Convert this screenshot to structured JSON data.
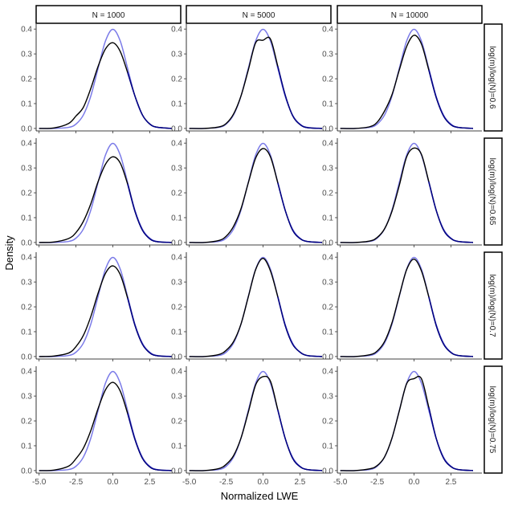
{
  "chart_data": {
    "type": "line",
    "layout": "facet-grid 4 rows x 3 columns",
    "xlabel": "Normalized LWE",
    "ylabel": "Density",
    "xlim": [
      -5.2,
      4.6
    ],
    "ylim": [
      -0.01,
      0.42
    ],
    "x_ticks": [
      -5.0,
      -2.5,
      0.0,
      2.5
    ],
    "x_tick_labels": [
      "-5.0",
      "-2.5",
      "0.0",
      "2.5"
    ],
    "y_ticks": [
      0.0,
      0.1,
      0.2,
      0.3,
      0.4
    ],
    "y_tick_labels": [
      "0.0",
      "0.1",
      "0.2",
      "0.3",
      "0.4"
    ],
    "grid": false,
    "legend": "none",
    "colors": {
      "empirical": "#000000",
      "normal_reference": "#7b7be8",
      "overlap": "#00008b"
    },
    "columns": [
      "N = 1000",
      "N = 5000",
      "N = 10000"
    ],
    "rows": [
      "log(m)/log(N)=0.6",
      "log(m)/log(N)=0.65",
      "log(m)/log(N)=0.7",
      "log(m)/log(N)=0.75"
    ],
    "reference_curve": {
      "x": [
        -5.0,
        -4.0,
        -3.0,
        -2.5,
        -2.0,
        -1.5,
        -1.0,
        -0.5,
        0.0,
        0.5,
        1.0,
        1.5,
        2.0,
        2.5,
        3.0,
        4.0
      ],
      "y": [
        0.0,
        0.0001,
        0.0044,
        0.0175,
        0.054,
        0.1295,
        0.242,
        0.352,
        0.399,
        0.352,
        0.242,
        0.1295,
        0.054,
        0.0175,
        0.0044,
        0.0001
      ]
    },
    "x": [
      -5.0,
      -4.0,
      -3.0,
      -2.5,
      -2.0,
      -1.5,
      -1.0,
      -0.5,
      0.0,
      0.5,
      1.0,
      1.5,
      2.0,
      2.5,
      3.0,
      4.0
    ],
    "panels": [
      {
        "row": 0,
        "col": 0,
        "values": [
          0.0,
          0.002,
          0.02,
          0.05,
          0.085,
          0.16,
          0.25,
          0.32,
          0.345,
          0.31,
          0.225,
          0.13,
          0.055,
          0.018,
          0.005,
          0.0
        ]
      },
      {
        "row": 0,
        "col": 1,
        "values": [
          0.0,
          0.0,
          0.006,
          0.02,
          0.058,
          0.13,
          0.235,
          0.345,
          0.355,
          0.36,
          0.25,
          0.135,
          0.052,
          0.016,
          0.003,
          0.0
        ]
      },
      {
        "row": 0,
        "col": 2,
        "values": [
          0.0,
          0.0,
          0.007,
          0.025,
          0.07,
          0.135,
          0.235,
          0.33,
          0.375,
          0.34,
          0.235,
          0.125,
          0.05,
          0.015,
          0.004,
          0.0
        ]
      },
      {
        "row": 1,
        "col": 0,
        "values": [
          0.0,
          0.002,
          0.016,
          0.04,
          0.085,
          0.155,
          0.245,
          0.315,
          0.345,
          0.32,
          0.235,
          0.125,
          0.05,
          0.015,
          0.003,
          0.0
        ]
      },
      {
        "row": 1,
        "col": 1,
        "values": [
          0.0,
          0.0,
          0.008,
          0.025,
          0.065,
          0.135,
          0.24,
          0.34,
          0.378,
          0.345,
          0.24,
          0.13,
          0.05,
          0.016,
          0.004,
          0.0
        ]
      },
      {
        "row": 1,
        "col": 2,
        "values": [
          0.0,
          0.0,
          0.006,
          0.02,
          0.055,
          0.125,
          0.23,
          0.345,
          0.38,
          0.355,
          0.245,
          0.13,
          0.05,
          0.016,
          0.004,
          0.0
        ]
      },
      {
        "row": 2,
        "col": 0,
        "values": [
          0.0,
          0.002,
          0.014,
          0.04,
          0.085,
          0.16,
          0.255,
          0.335,
          0.365,
          0.33,
          0.235,
          0.125,
          0.05,
          0.015,
          0.003,
          0.0
        ]
      },
      {
        "row": 2,
        "col": 1,
        "values": [
          0.0,
          0.0,
          0.008,
          0.025,
          0.06,
          0.13,
          0.24,
          0.35,
          0.395,
          0.345,
          0.24,
          0.125,
          0.05,
          0.018,
          0.004,
          0.0
        ]
      },
      {
        "row": 2,
        "col": 2,
        "values": [
          0.0,
          0.0,
          0.007,
          0.022,
          0.06,
          0.135,
          0.245,
          0.35,
          0.392,
          0.345,
          0.24,
          0.125,
          0.05,
          0.016,
          0.004,
          0.0
        ]
      },
      {
        "row": 3,
        "col": 0,
        "values": [
          0.0,
          0.002,
          0.018,
          0.048,
          0.09,
          0.16,
          0.25,
          0.325,
          0.355,
          0.32,
          0.23,
          0.125,
          0.05,
          0.015,
          0.003,
          0.0
        ]
      },
      {
        "row": 3,
        "col": 1,
        "values": [
          0.0,
          0.0,
          0.008,
          0.025,
          0.06,
          0.13,
          0.235,
          0.345,
          0.378,
          0.36,
          0.245,
          0.13,
          0.05,
          0.016,
          0.004,
          0.0
        ]
      },
      {
        "row": 3,
        "col": 2,
        "values": [
          0.0,
          0.0,
          0.007,
          0.02,
          0.055,
          0.13,
          0.24,
          0.35,
          0.37,
          0.37,
          0.255,
          0.13,
          0.05,
          0.016,
          0.004,
          0.0
        ]
      }
    ]
  }
}
